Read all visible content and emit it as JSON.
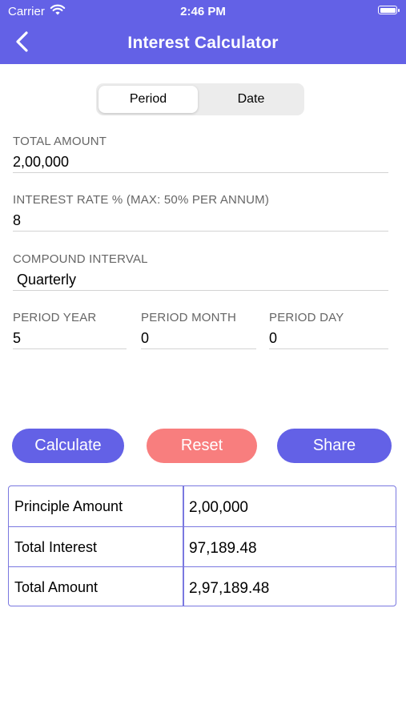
{
  "status_bar": {
    "carrier": "Carrier",
    "time": "2:46 PM"
  },
  "header": {
    "title": "Interest Calculator"
  },
  "tabs": {
    "period": "Period",
    "date": "Date",
    "selected": "Period"
  },
  "fields": {
    "total_amount": {
      "label": "TOTAL AMOUNT",
      "value": "2,00,000"
    },
    "interest_rate": {
      "label": "INTEREST RATE % (MAX: 50% PER ANNUM)",
      "value": "8"
    },
    "compound_interval": {
      "label": "COMPOUND INTERVAL",
      "value": "Quarterly"
    },
    "period_year": {
      "label": "PERIOD YEAR",
      "value": "5"
    },
    "period_month": {
      "label": "PERIOD MONTH",
      "value": "0"
    },
    "period_day": {
      "label": "PERIOD DAY",
      "value": "0"
    }
  },
  "buttons": {
    "calculate": "Calculate",
    "reset": "Reset",
    "share": "Share"
  },
  "results": [
    {
      "label": "Principle Amount",
      "value": "2,00,000"
    },
    {
      "label": "Total Interest",
      "value": "97,189.48"
    },
    {
      "label": "Total Amount",
      "value": "2,97,189.48"
    }
  ],
  "colors": {
    "primary": "#6361E6",
    "reset": "#F87E7E",
    "table_border": "#7A78E0"
  },
  "icons": {
    "back": "chevron-left-icon",
    "wifi": "wifi-icon",
    "battery": "battery-icon"
  }
}
